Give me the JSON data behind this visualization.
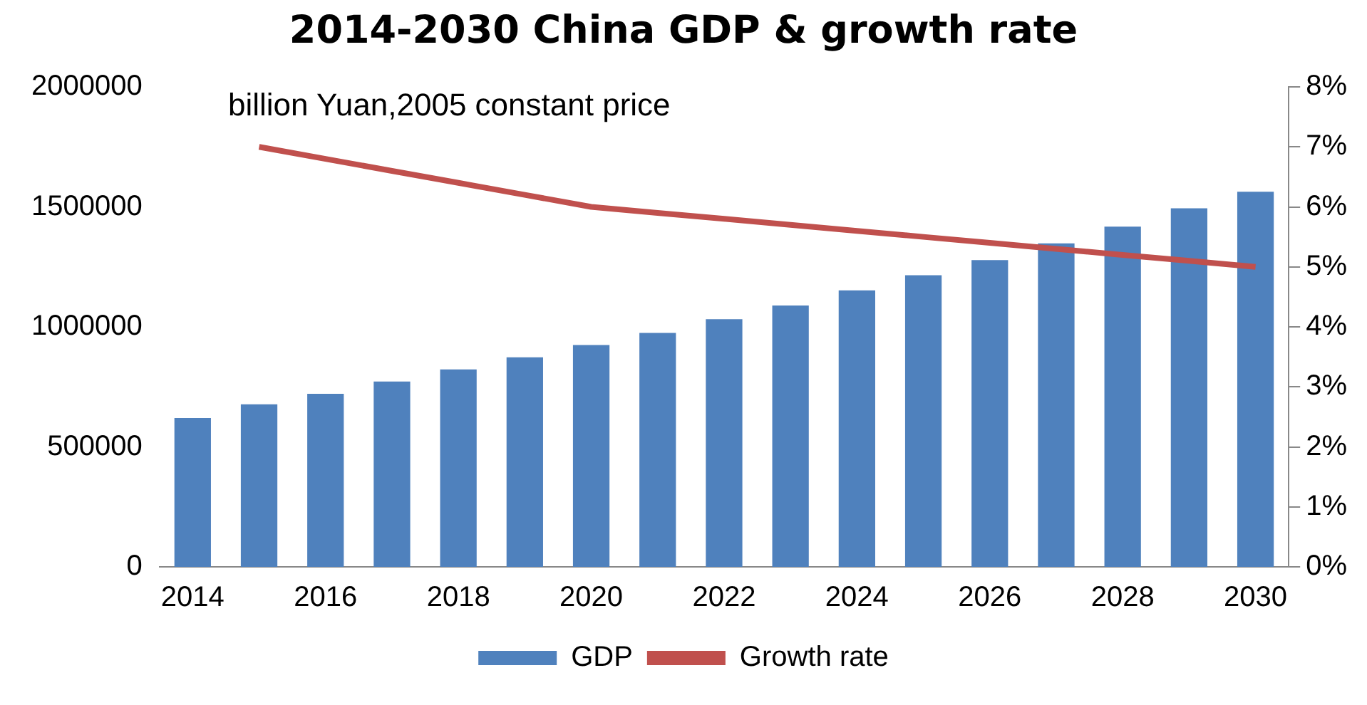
{
  "chart_data": {
    "type": "bar",
    "title": "2014-2030 China GDP & growth rate",
    "categories": [
      "2014",
      null,
      "2016",
      null,
      "2018",
      null,
      "2020",
      null,
      "2022",
      null,
      "2024",
      null,
      "2026",
      null,
      "2028",
      null,
      "2030"
    ],
    "series": [
      {
        "name": "GDP",
        "color": "#4f81bd",
        "values": [
          620000,
          677000,
          721000,
          772000,
          823000,
          873000,
          924000,
          975000,
          1032000,
          1089000,
          1152000,
          1215000,
          1278000,
          1348000,
          1418000,
          1494000,
          1563000
        ]
      },
      {
        "name": "Growth rate",
        "type": "line",
        "axis": "y2",
        "color": "#c0504d",
        "values": [
          null,
          7.0,
          6.8,
          6.6,
          6.4,
          6.2,
          6.0,
          5.9,
          5.8,
          5.7,
          5.6,
          5.5,
          5.4,
          5.3,
          5.2,
          5.1,
          5.0
        ]
      }
    ],
    "ylim": [
      0,
      2000000
    ],
    "yticks": [
      0,
      500000,
      1000000,
      1500000,
      2000000
    ],
    "y2lim": [
      0,
      8
    ],
    "y2ticks": [
      {
        "value": 0,
        "label": "0%"
      },
      {
        "value": 1,
        "label": "1%"
      },
      {
        "value": 2,
        "label": "2%"
      },
      {
        "value": 3,
        "label": "3%"
      },
      {
        "value": 4,
        "label": "4%"
      },
      {
        "value": 5,
        "label": "5%"
      },
      {
        "value": 6,
        "label": "6%"
      },
      {
        "value": 7,
        "label": "7%"
      },
      {
        "value": 8,
        "label": "8%"
      }
    ],
    "annotations": [
      "billion Yuan,2005 constant price"
    ],
    "grid": false,
    "legend": "bottom",
    "marker": "none"
  }
}
